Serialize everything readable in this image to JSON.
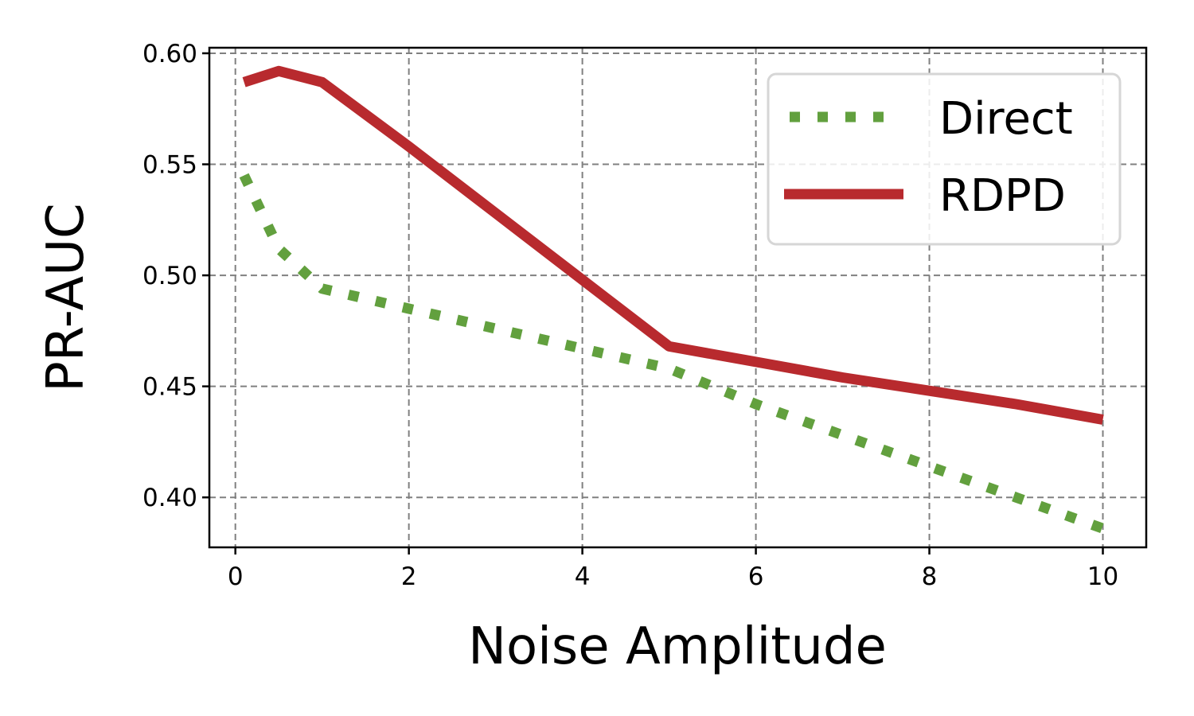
{
  "chart_data": {
    "type": "line",
    "title": "",
    "xlabel": "Noise Amplitude",
    "ylabel": "PR-AUC",
    "xlim": [
      -0.3,
      10.5
    ],
    "ylim": [
      0.3775,
      0.6025
    ],
    "x_ticks": [
      "0",
      "2",
      "4",
      "6",
      "8",
      "10"
    ],
    "y_ticks": [
      "0.40",
      "0.45",
      "0.50",
      "0.55",
      "0.60"
    ],
    "grid": true,
    "legend_position": "top-right",
    "series": [
      {
        "name": "Direct",
        "style": "dotted",
        "color": "#62a03e",
        "x": [
          0.1,
          0.5,
          1,
          2,
          3,
          4,
          5,
          6,
          7,
          8,
          9,
          10
        ],
        "y": [
          0.545,
          0.512,
          0.494,
          0.485,
          0.476,
          0.467,
          0.458,
          0.442,
          0.428,
          0.414,
          0.4,
          0.386
        ]
      },
      {
        "name": "RDPD",
        "style": "solid",
        "color": "#b82a2e",
        "x": [
          0.1,
          0.5,
          1,
          2,
          3,
          4,
          5,
          6,
          7,
          8,
          9,
          10
        ],
        "y": [
          0.587,
          0.592,
          0.587,
          0.558,
          0.528,
          0.498,
          0.468,
          0.461,
          0.454,
          0.448,
          0.442,
          0.435
        ]
      }
    ]
  }
}
